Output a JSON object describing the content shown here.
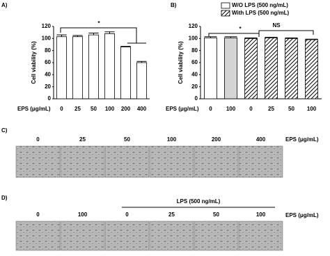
{
  "chart_data": [
    {
      "type": "bar",
      "panel_label": "A)",
      "ylabel": "Cell viability (%)",
      "xlabel": "EPS (μg/mL)",
      "categories": [
        "0",
        "25",
        "50",
        "100",
        "200",
        "400"
      ],
      "values": [
        103,
        103,
        106,
        108,
        86,
        60
      ],
      "errors": [
        3,
        2,
        3,
        3,
        1,
        2
      ],
      "color": "#ffffff",
      "ylim": [
        0,
        120
      ],
      "yticks": [
        0,
        20,
        40,
        60,
        80,
        100,
        120
      ],
      "annotations": [
        "*"
      ]
    },
    {
      "type": "bar",
      "panel_label": "B)",
      "ylabel": "Cell viability (%)",
      "xlabel": "EPS (μg/mL)",
      "categories": [
        "0",
        "100",
        "0",
        "25",
        "50",
        "100"
      ],
      "series": [
        {
          "name": "W/O LPS (500 ng/mL)",
          "color": "#ffffff",
          "bar_colors": [
            "#ffffff",
            "#d4d4d4",
            null,
            null,
            null,
            null
          ],
          "values": [
            101,
            101,
            null,
            null,
            null,
            null
          ],
          "errors": [
            2,
            2,
            null,
            null,
            null,
            null
          ]
        },
        {
          "name": "With LPS (500 ng/mL)",
          "color": "#000000",
          "hatch": true,
          "values": [
            null,
            null,
            100,
            101,
            100,
            98
          ],
          "errors": [
            null,
            null,
            1,
            1,
            1,
            1
          ]
        }
      ],
      "ylim": [
        0,
        120
      ],
      "yticks": [
        0,
        20,
        40,
        60,
        80,
        100,
        120
      ],
      "annotations": [
        "*",
        "NS"
      ]
    }
  ],
  "panel_c": {
    "label": "C)",
    "axis_label": "EPS (μg/mL)",
    "columns": [
      "0",
      "25",
      "50",
      "100",
      "200",
      "400"
    ]
  },
  "panel_d": {
    "label": "D)",
    "group_label": "LPS (500 ng/mL)",
    "axis_label": "EPS (μg/mL)",
    "columns": [
      "0",
      "100",
      "0",
      "25",
      "50",
      "100"
    ]
  }
}
